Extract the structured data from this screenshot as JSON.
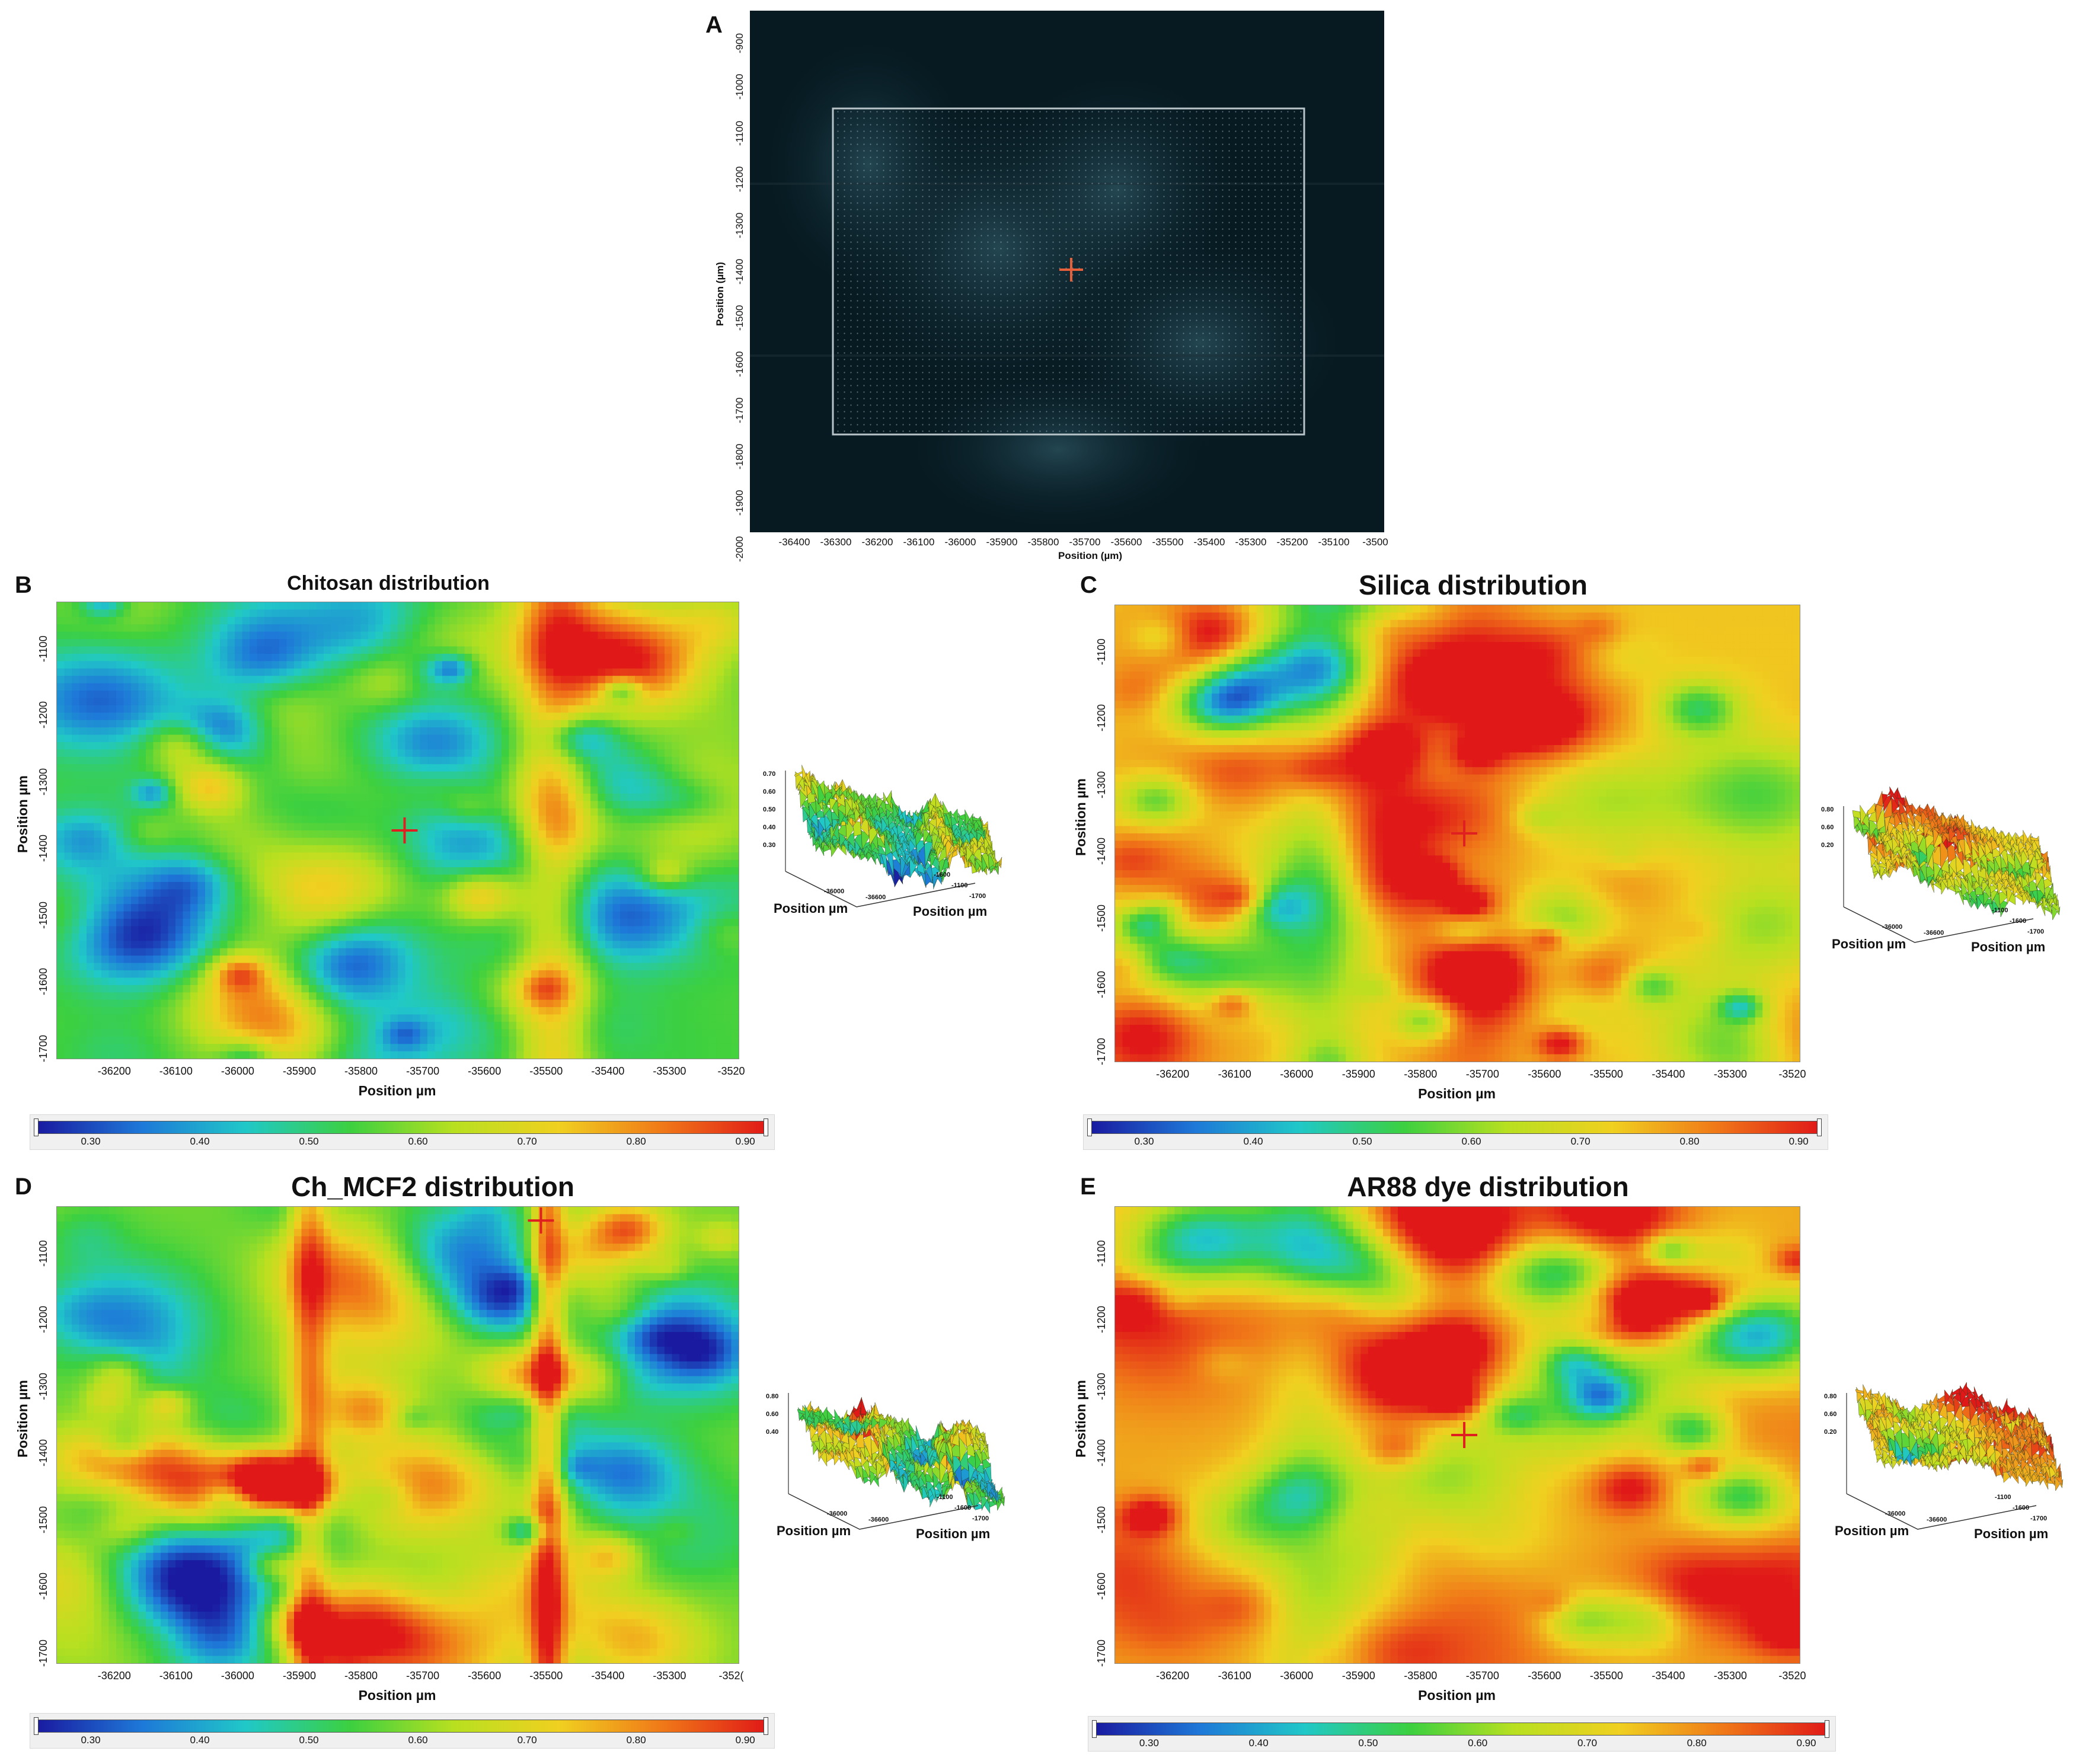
{
  "panel_a": {
    "letter": "A",
    "xlabel": "Position (µm)",
    "ylabel": "Position (µm)",
    "xticks": [
      "-36400",
      "-36300",
      "-36200",
      "-36100",
      "-36000",
      "-35900",
      "-35800",
      "-35700",
      "-35600",
      "-35500",
      "-35400",
      "-35300",
      "-35200",
      "-35100",
      "-3500"
    ],
    "yticks": [
      "-900",
      "-1000",
      "-1100",
      "-1200",
      "-1300",
      "-1400",
      "-1500",
      "-1600",
      "-1700",
      "-1800",
      "-1900",
      "-2000"
    ]
  },
  "chart_data": [
    {
      "type": "heatmap",
      "panel": "B",
      "title": "Chitosan distribution",
      "xlabel": "Position µm",
      "ylabel": "Position µm",
      "xticks": [
        "-36200",
        "-36100",
        "-36000",
        "-35900",
        "-35800",
        "-35700",
        "-35600",
        "-35500",
        "-35400",
        "-35300",
        "-3520"
      ],
      "yticks": [
        "-1100",
        "-1200",
        "-1300",
        "-1400",
        "-1500",
        "-1600",
        "-1700"
      ],
      "colorbar_ticks": [
        "0.30",
        "0.40",
        "0.50",
        "0.60",
        "0.70",
        "0.80",
        "0.90"
      ],
      "color_range": [
        0.25,
        0.92
      ],
      "surface_ticks": [
        "0.70",
        "0.60",
        "0.50",
        "0.40",
        "0.30"
      ],
      "surface_x_ticks": [
        "-1600",
        "-1100",
        "-1700"
      ],
      "surface_y_ticks": [
        "-36000",
        "-36600"
      ],
      "surface_xlabel": "Position µm",
      "surface_ylabel": "Position µm"
    },
    {
      "type": "heatmap",
      "panel": "C",
      "title": "Silica distribution",
      "xlabel": "Position µm",
      "ylabel": "Position µm",
      "xticks": [
        "-36200",
        "-36100",
        "-36000",
        "-35900",
        "-35800",
        "-35700",
        "-35600",
        "-35500",
        "-35400",
        "-35300",
        "-3520"
      ],
      "yticks": [
        "-1100",
        "-1200",
        "-1300",
        "-1400",
        "-1500",
        "-1600",
        "-1700"
      ],
      "colorbar_ticks": [
        "0.30",
        "0.40",
        "0.50",
        "0.60",
        "0.70",
        "0.80",
        "0.90"
      ],
      "color_range": [
        0.25,
        0.92
      ],
      "surface_ticks": [
        "0.80",
        "0.60",
        "0.20"
      ],
      "surface_x_ticks": [
        "-1100",
        "-1600",
        "-1700"
      ],
      "surface_y_ticks": [
        "-36000",
        "-36600"
      ],
      "surface_xlabel": "Position µm",
      "surface_ylabel": "Position µm"
    },
    {
      "type": "heatmap",
      "panel": "D",
      "title": "Ch_MCF2 distribution",
      "xlabel": "Position µm",
      "ylabel": "Position µm",
      "xticks": [
        "-36200",
        "-36100",
        "-36000",
        "-35900",
        "-35800",
        "-35700",
        "-35600",
        "-35500",
        "-35400",
        "-35300",
        "-352("
      ],
      "yticks": [
        "-1100",
        "-1200",
        "-1300",
        "-1400",
        "-1500",
        "-1600",
        "-1700"
      ],
      "colorbar_ticks": [
        "0.30",
        "0.40",
        "0.50",
        "0.60",
        "0.70",
        "0.80",
        "0.90"
      ],
      "color_range": [
        0.25,
        0.92
      ],
      "surface_ticks": [
        "0.80",
        "0.60",
        "0.40"
      ],
      "surface_x_ticks": [
        "-1100",
        "-1600",
        "-1700"
      ],
      "surface_y_ticks": [
        "-36000",
        "-36600"
      ],
      "surface_xlabel": "Position µm",
      "surface_ylabel": "Position µm"
    },
    {
      "type": "heatmap",
      "panel": "E",
      "title": "AR88 dye distribution",
      "xlabel": "Position µm",
      "ylabel": "Position µm",
      "xticks": [
        "-36200",
        "-36100",
        "-36000",
        "-35900",
        "-35800",
        "-35700",
        "-35600",
        "-35500",
        "-35400",
        "-35300",
        "-3520"
      ],
      "yticks": [
        "-1100",
        "-1200",
        "-1300",
        "-1400",
        "-1500",
        "-1600",
        "-1700"
      ],
      "colorbar_ticks": [
        "0.30",
        "0.40",
        "0.50",
        "0.60",
        "0.70",
        "0.80",
        "0.90"
      ],
      "color_range": [
        0.25,
        0.92
      ],
      "surface_ticks": [
        "0.80",
        "0.60",
        "0.20"
      ],
      "surface_x_ticks": [
        "-1100",
        "-1600",
        "-1700"
      ],
      "surface_y_ticks": [
        "-36000",
        "-36600"
      ],
      "surface_xlabel": "Position µm",
      "surface_ylabel": "Position µm"
    }
  ],
  "colors": {
    "crosshair": "#e02020",
    "colormap": [
      "#1a1aa0",
      "#1e78d8",
      "#20c8c8",
      "#3cd040",
      "#b8e020",
      "#f0d020",
      "#f07818",
      "#e01818"
    ]
  }
}
